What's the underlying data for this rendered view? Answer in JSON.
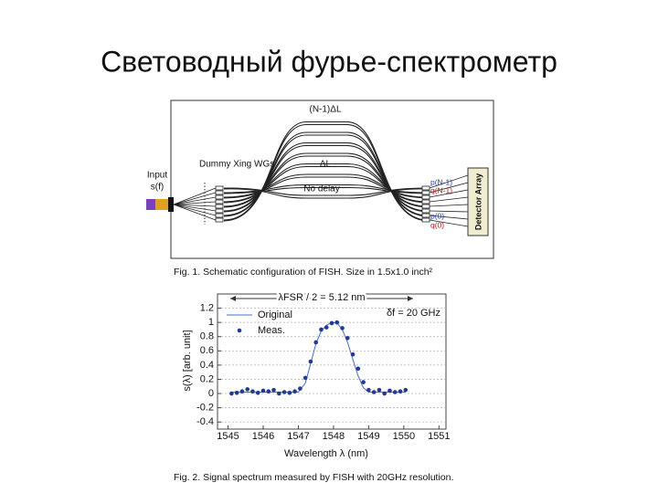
{
  "title": "Световодный фурье-спектрометр",
  "figure1": {
    "labels": {
      "top_delay": "(N-1)ΔL",
      "mid_delay": "ΔL",
      "no_delay": "No delay",
      "dummy": "Dummy Xing WGs",
      "input": "Input",
      "input_signal": "s(f)",
      "p_top": "p(N-1)",
      "q_top": "q(N-1)",
      "p_bottom": "p(0)",
      "q_bottom": "q(0)",
      "detector": "Detector Array"
    },
    "caption": "Fig. 1. Schematic configuration of FISH. Size in 1.5x1.0 inch²"
  },
  "chart_data": {
    "type": "line",
    "xlabel": "Wavelength λ (nm)",
    "ylabel": "s(λ) [arb. unit]",
    "annotations": [
      "λFSR / 2 = 5.12 nm",
      "δf = 20 GHz"
    ],
    "xlim": [
      1544.7,
      1551.2
    ],
    "xticks": [
      1545,
      1546,
      1547,
      1548,
      1549,
      1550,
      1551
    ],
    "ylim": [
      -0.5,
      1.4
    ],
    "yticks": [
      -0.4,
      -0.2,
      0,
      0.2,
      0.4,
      0.6,
      0.8,
      1,
      1.2
    ],
    "grid": true,
    "legend": "upper-left",
    "series": [
      {
        "name": "Original",
        "color": "#4a6bd0",
        "mode": "line",
        "x": [
          1545.1,
          1547.0,
          1547.2,
          1547.35,
          1547.5,
          1547.65,
          1547.8,
          1547.95,
          1548.1,
          1548.25,
          1548.4,
          1548.55,
          1548.7,
          1548.85,
          1549.0,
          1550.05
        ],
        "values": [
          0.02,
          0.02,
          0.15,
          0.42,
          0.7,
          0.88,
          0.96,
          1.0,
          0.99,
          0.9,
          0.72,
          0.48,
          0.25,
          0.08,
          0.02,
          0.02
        ]
      },
      {
        "name": "Meas.",
        "color": "#1f3a9a",
        "mode": "markers",
        "x": [
          1545.1,
          1545.25,
          1545.4,
          1545.55,
          1545.7,
          1545.85,
          1546.0,
          1546.15,
          1546.3,
          1546.45,
          1546.6,
          1546.75,
          1546.9,
          1547.05,
          1547.2,
          1547.35,
          1547.5,
          1547.65,
          1547.8,
          1547.95,
          1548.1,
          1548.25,
          1548.4,
          1548.55,
          1548.7,
          1548.85,
          1549.0,
          1549.15,
          1549.3,
          1549.45,
          1549.6,
          1549.75,
          1549.9,
          1550.05
        ],
        "values": [
          0.0,
          0.01,
          0.03,
          0.06,
          0.03,
          0.01,
          0.04,
          0.03,
          0.05,
          0.0,
          0.02,
          0.01,
          0.03,
          0.07,
          0.22,
          0.45,
          0.72,
          0.9,
          0.93,
          0.99,
          1.0,
          0.92,
          0.78,
          0.55,
          0.35,
          0.16,
          0.05,
          0.02,
          0.05,
          0.0,
          0.04,
          0.02,
          0.03,
          0.05
        ]
      }
    ]
  },
  "figure2_caption": "Fig. 2. Signal spectrum measured by FISH with 20GHz resolution."
}
